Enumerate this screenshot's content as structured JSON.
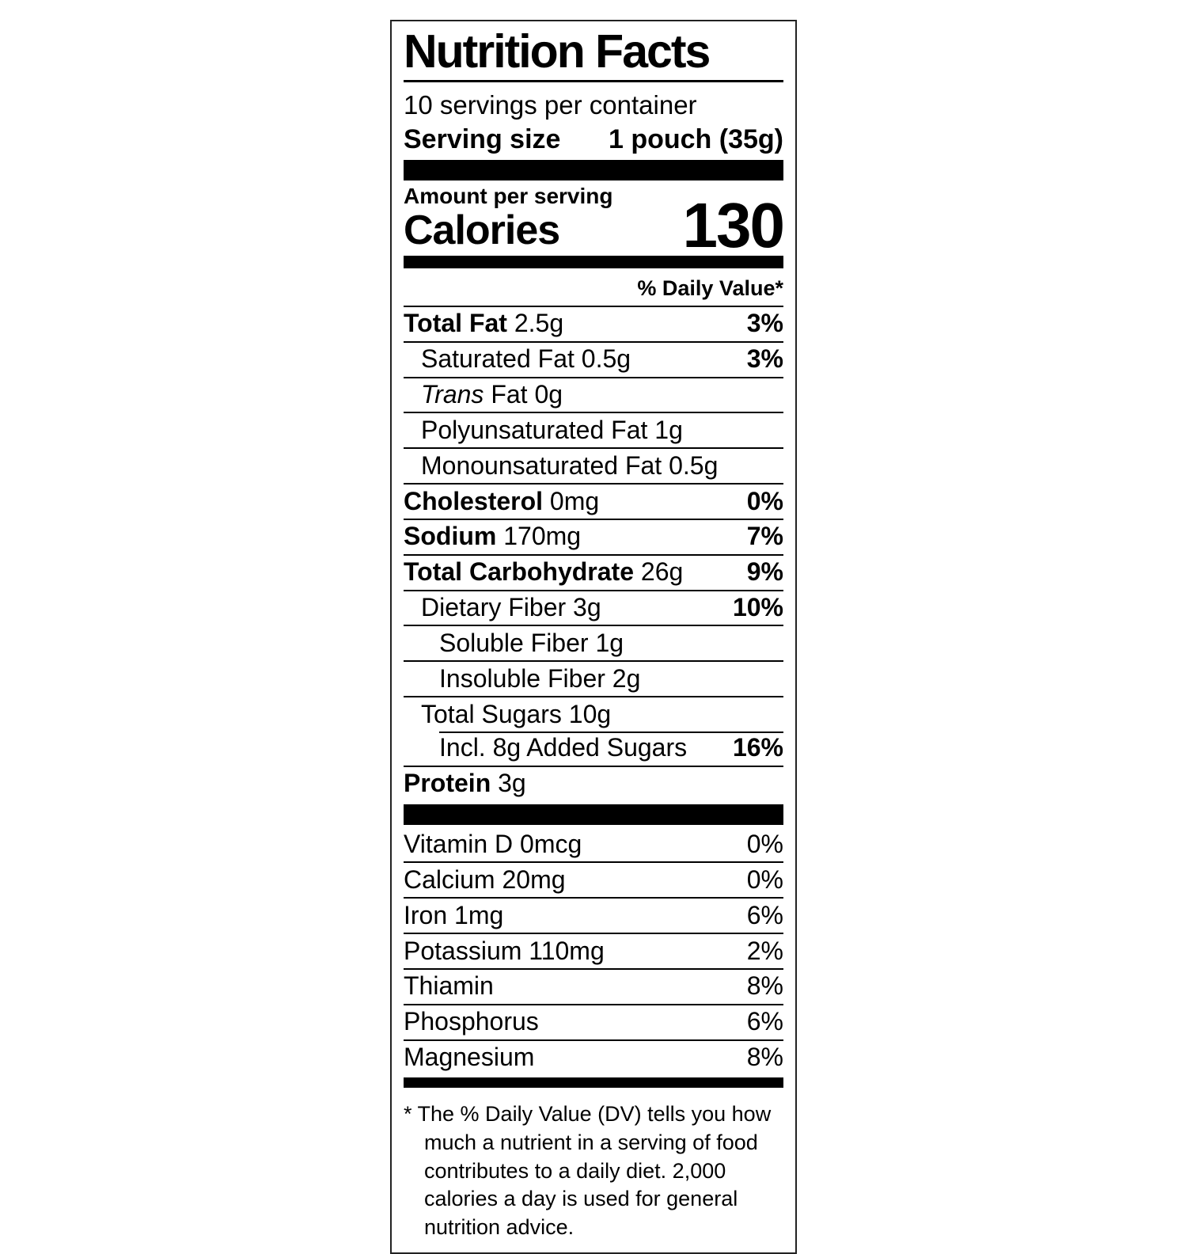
{
  "colors": {
    "text": "#000000",
    "background": "#ffffff",
    "divider": "#000000",
    "border": "#222222"
  },
  "label": {
    "title": "Nutrition Facts",
    "servings_per_container": "10 servings per container",
    "serving_size_label": "Serving size",
    "serving_size_value": "1 pouch (35g)",
    "amount_per_serving": "Amount per serving",
    "calories_label": "Calories",
    "calories_value": "130",
    "daily_value_header": "% Daily Value*",
    "nutrients": [
      {
        "name": "Total Fat",
        "amount": "2.5g",
        "dv": "3%",
        "bold": true,
        "indent": 0
      },
      {
        "name": "Saturated Fat",
        "amount": "0.5g",
        "dv": "3%",
        "indent": 1
      },
      {
        "name": "Trans",
        "amount": "Fat 0g",
        "italic": true,
        "indent": 1
      },
      {
        "name": "Polyunsaturated Fat",
        "amount": "1g",
        "indent": 1
      },
      {
        "name": "Monounsaturated Fat",
        "amount": "0.5g",
        "indent": 1
      },
      {
        "name": "Cholesterol",
        "amount": "0mg",
        "dv": "0%",
        "bold": true,
        "indent": 0
      },
      {
        "name": "Sodium",
        "amount": "170mg",
        "dv": "7%",
        "bold": true,
        "indent": 0
      },
      {
        "name": "Total Carbohydrate",
        "amount": "26g",
        "dv": "9%",
        "bold": true,
        "indent": 0
      },
      {
        "name": "Dietary Fiber",
        "amount": "3g",
        "dv": "10%",
        "indent": 1
      },
      {
        "name": "Soluble Fiber",
        "amount": "1g",
        "indent": 2
      },
      {
        "name": "Insoluble Fiber",
        "amount": "2g",
        "indent": 2
      },
      {
        "name": "Total Sugars",
        "amount": "10g",
        "indent": 1
      },
      {
        "name": "Incl. 8g Added Sugars",
        "dv": "16%",
        "indent": 2,
        "rule_indent": true
      },
      {
        "name": "Protein",
        "amount": "3g",
        "bold": true,
        "indent": 0
      }
    ],
    "vitamins": [
      {
        "name": "Vitamin D",
        "amount": "0mcg",
        "dv": "0%"
      },
      {
        "name": "Calcium",
        "amount": "20mg",
        "dv": "0%"
      },
      {
        "name": "Iron",
        "amount": "1mg",
        "dv": "6%"
      },
      {
        "name": "Potassium",
        "amount": "110mg",
        "dv": "2%"
      },
      {
        "name": "Thiamin",
        "dv": "8%"
      },
      {
        "name": "Phosphorus",
        "dv": "6%"
      },
      {
        "name": "Magnesium",
        "dv": "8%"
      }
    ],
    "footnote": "* The % Daily Value (DV) tells you how much a nutrient in a serving of food contributes to a daily diet. 2,000 calories a day is used for general nutrition advice."
  }
}
